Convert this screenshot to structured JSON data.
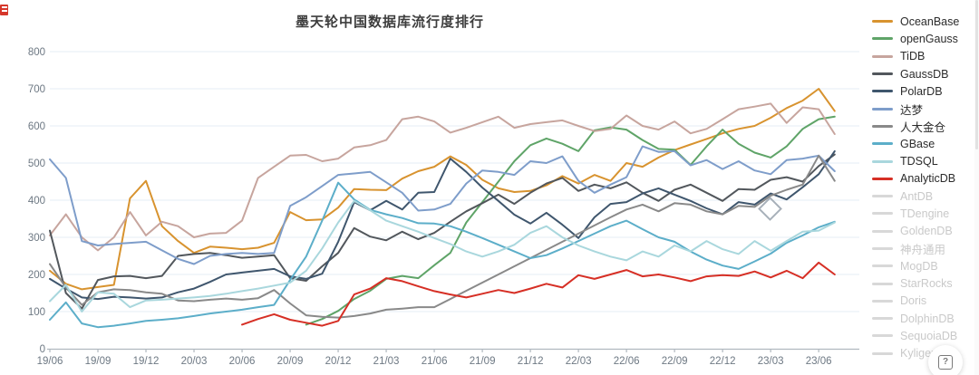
{
  "page": {
    "background": "#ffffff"
  },
  "chart_data": {
    "type": "line",
    "title": "墨天轮中国数据库流行度排行",
    "xlabel": "",
    "ylabel": "",
    "ylim": [
      0,
      800
    ],
    "y_ticks": [
      0,
      100,
      200,
      300,
      400,
      500,
      600,
      700,
      800
    ],
    "grid": true,
    "legend_position": "right",
    "months": [
      "19/06",
      "19/07",
      "19/08",
      "19/09",
      "19/10",
      "19/11",
      "19/12",
      "20/01",
      "20/02",
      "20/03",
      "20/04",
      "20/05",
      "20/06",
      "20/07",
      "20/08",
      "20/09",
      "20/10",
      "20/11",
      "20/12",
      "21/01",
      "21/02",
      "21/03",
      "21/04",
      "21/05",
      "21/06",
      "21/07",
      "21/08",
      "21/09",
      "21/10",
      "21/11",
      "21/12",
      "22/01",
      "22/02",
      "22/03",
      "22/04",
      "22/05",
      "22/06",
      "22/07",
      "22/08",
      "22/09",
      "22/10",
      "22/11",
      "22/12",
      "23/01",
      "23/02",
      "23/03",
      "23/04",
      "23/05",
      "23/06",
      "23/07"
    ],
    "x_tick_labels": [
      "19/06",
      "19/09",
      "19/12",
      "20/03",
      "20/06",
      "20/09",
      "20/12",
      "21/03",
      "21/06",
      "21/09",
      "21/12",
      "22/03",
      "22/06",
      "22/09",
      "22/12",
      "23/03",
      "23/06"
    ],
    "x_tick_every": 3,
    "series": [
      {
        "name": "OceanBase",
        "color": "#d8932f",
        "enabled": true,
        "values": [
          210,
          175,
          160,
          166,
          172,
          405,
          452,
          330,
          290,
          258,
          275,
          272,
          268,
          272,
          285,
          368,
          346,
          348,
          380,
          430,
          428,
          427,
          458,
          478,
          490,
          518,
          495,
          455,
          432,
          422,
          425,
          440,
          465,
          445,
          468,
          452,
          500,
          490,
          515,
          535,
          550,
          565,
          580,
          592,
          600,
          622,
          648,
          668,
          700,
          640
        ]
      },
      {
        "name": "openGauss",
        "color": "#5fa468",
        "enabled": true,
        "values": [
          null,
          null,
          null,
          null,
          null,
          null,
          null,
          null,
          null,
          null,
          null,
          null,
          null,
          null,
          null,
          null,
          65,
          80,
          102,
          134,
          156,
          188,
          196,
          190,
          225,
          258,
          340,
          395,
          450,
          505,
          548,
          566,
          552,
          532,
          588,
          596,
          590,
          562,
          538,
          536,
          495,
          545,
          590,
          552,
          528,
          515,
          545,
          592,
          618,
          625
        ]
      },
      {
        "name": "TiDB",
        "color": "#c7a59e",
        "enabled": true,
        "values": [
          305,
          362,
          300,
          265,
          300,
          368,
          305,
          342,
          330,
          300,
          310,
          312,
          345,
          460,
          490,
          520,
          522,
          505,
          512,
          542,
          548,
          562,
          618,
          625,
          612,
          582,
          595,
          610,
          625,
          595,
          605,
          610,
          615,
          600,
          586,
          592,
          628,
          600,
          590,
          612,
          580,
          592,
          618,
          645,
          652,
          660,
          608,
          650,
          645,
          578
        ]
      },
      {
        "name": "GaussDB",
        "color": "#52575c",
        "enabled": true,
        "values": [
          318,
          150,
          108,
          185,
          195,
          196,
          190,
          196,
          250,
          255,
          258,
          252,
          245,
          248,
          252,
          190,
          183,
          222,
          258,
          325,
          302,
          292,
          315,
          295,
          312,
          342,
          370,
          392,
          415,
          390,
          420,
          445,
          460,
          425,
          442,
          432,
          448,
          420,
          398,
          428,
          442,
          420,
          398,
          430,
          428,
          455,
          462,
          450,
          492,
          523
        ]
      },
      {
        "name": "PolarDB",
        "color": "#3f566d",
        "enabled": true,
        "values": [
          188,
          162,
          138,
          134,
          140,
          138,
          135,
          138,
          152,
          162,
          180,
          200,
          205,
          210,
          215,
          195,
          188,
          202,
          288,
          395,
          373,
          398,
          375,
          420,
          422,
          512,
          476,
          434,
          398,
          361,
          337,
          366,
          334,
          298,
          354,
          390,
          395,
          418,
          432,
          415,
          398,
          378,
          362,
          395,
          388,
          418,
          402,
          435,
          470,
          532
        ]
      },
      {
        "name": "达梦",
        "color": "#7e9dca",
        "enabled": true,
        "values": [
          510,
          460,
          290,
          278,
          282,
          285,
          288,
          265,
          242,
          228,
          250,
          255,
          258,
          255,
          258,
          385,
          408,
          438,
          468,
          472,
          476,
          448,
          420,
          372,
          375,
          390,
          445,
          480,
          476,
          468,
          505,
          500,
          518,
          452,
          420,
          442,
          462,
          545,
          530,
          532,
          494,
          508,
          484,
          505,
          480,
          470,
          508,
          512,
          520,
          478
        ]
      },
      {
        "name": "人大金仓",
        "color": "#898989",
        "enabled": true,
        "values": [
          228,
          165,
          118,
          152,
          160,
          158,
          152,
          148,
          130,
          128,
          132,
          135,
          132,
          136,
          158,
          122,
          90,
          86,
          84,
          88,
          95,
          105,
          108,
          112,
          112,
          134,
          156,
          178,
          200,
          222,
          244,
          266,
          288,
          310,
          332,
          354,
          375,
          388,
          370,
          392,
          388,
          370,
          362,
          385,
          382,
          412,
          428,
          442,
          520,
          452
        ]
      },
      {
        "name": "GBase",
        "color": "#5caec9",
        "enabled": true,
        "values": [
          78,
          125,
          68,
          58,
          62,
          68,
          75,
          78,
          82,
          88,
          95,
          100,
          105,
          112,
          118,
          185,
          248,
          345,
          447,
          402,
          374,
          362,
          352,
          338,
          337,
          330,
          315,
          298,
          280,
          262,
          244,
          252,
          270,
          290,
          310,
          330,
          345,
          322,
          300,
          288,
          262,
          240,
          224,
          215,
          235,
          256,
          285,
          305,
          327,
          342
        ]
      },
      {
        "name": "TDSQL",
        "color": "#a9d7dd",
        "enabled": true,
        "values": [
          128,
          172,
          100,
          152,
          148,
          112,
          130,
          132,
          135,
          138,
          142,
          148,
          155,
          162,
          170,
          178,
          210,
          270,
          340,
          398,
          373,
          345,
          330,
          315,
          298,
          282,
          262,
          248,
          262,
          280,
          312,
          330,
          300,
          278,
          262,
          248,
          238,
          262,
          248,
          278,
          262,
          290,
          268,
          255,
          290,
          264,
          290,
          315,
          318,
          340
        ]
      },
      {
        "name": "AnalyticDB",
        "color": "#d62f25",
        "enabled": true,
        "values": [
          null,
          null,
          null,
          null,
          null,
          null,
          null,
          null,
          null,
          null,
          null,
          null,
          65,
          80,
          93,
          78,
          70,
          62,
          75,
          146,
          162,
          190,
          182,
          168,
          155,
          146,
          138,
          148,
          158,
          150,
          162,
          175,
          165,
          198,
          188,
          200,
          212,
          195,
          200,
          192,
          182,
          195,
          198,
          196,
          208,
          192,
          210,
          190,
          232,
          200
        ]
      },
      {
        "name": "AntDB",
        "color": "#d8d8d8",
        "enabled": false,
        "values": null
      },
      {
        "name": "TDengine",
        "color": "#d8d8d8",
        "enabled": false,
        "values": null
      },
      {
        "name": "GoldenDB",
        "color": "#d8d8d8",
        "enabled": false,
        "values": null
      },
      {
        "name": "神舟通用",
        "color": "#d8d8d8",
        "enabled": false,
        "values": null
      },
      {
        "name": "MogDB",
        "color": "#d8d8d8",
        "enabled": false,
        "values": null
      },
      {
        "name": "StarRocks",
        "color": "#d8d8d8",
        "enabled": false,
        "values": null
      },
      {
        "name": "Doris",
        "color": "#d8d8d8",
        "enabled": false,
        "values": null
      },
      {
        "name": "DolphinDB",
        "color": "#d8d8d8",
        "enabled": false,
        "values": null
      },
      {
        "name": "SequoiaDB",
        "color": "#d8d8d8",
        "enabled": false,
        "values": null
      },
      {
        "name": "Kyligence",
        "color": "#d8d8d8",
        "enabled": false,
        "values": null
      }
    ],
    "colors": {
      "grid": "#e6eef5",
      "axis": "#b0b8bf",
      "tick_label": "#6d7883",
      "title": "#3d3d3d",
      "disabled_legend_text": "#c9c9c9"
    }
  },
  "floating_button": {
    "label": "?"
  }
}
